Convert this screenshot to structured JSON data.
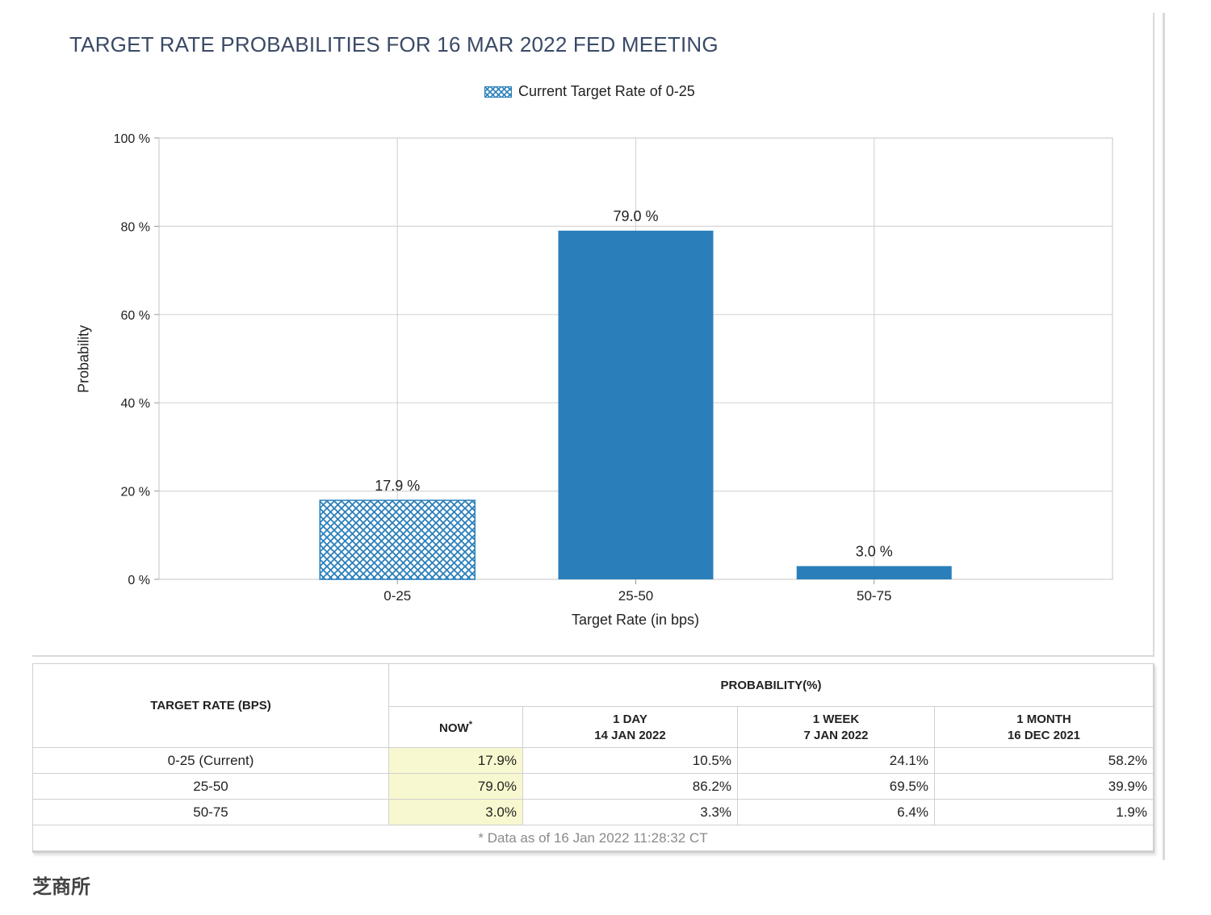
{
  "chart_data": {
    "type": "bar",
    "title": "TARGET RATE PROBABILITIES FOR 16 MAR 2022 FED MEETING",
    "legend": {
      "label": "Current Target Rate of 0-25",
      "placement": "top-center"
    },
    "categories": [
      "0-25",
      "25-50",
      "50-75"
    ],
    "values": [
      17.9,
      79.0,
      3.0
    ],
    "data_labels": [
      "17.9 %",
      "79.0 %",
      "3.0 %"
    ],
    "hatched_category": "0-25",
    "xlabel": "Target Rate (in bps)",
    "ylabel": "Probability",
    "ylim": [
      0,
      100
    ],
    "yticks": [
      0,
      20,
      40,
      60,
      80,
      100
    ],
    "ytick_labels": [
      "0 %",
      "20 %",
      "40 %",
      "60 %",
      "80 %",
      "100 %"
    ],
    "grid": true,
    "bar_color": "#2a7fba"
  },
  "table": {
    "header_rate": "TARGET RATE (BPS)",
    "header_prob": "PROBABILITY(%)",
    "columns": [
      {
        "line1": "NOW",
        "line2": ""
      },
      {
        "line1": "1 DAY",
        "line2": "14 JAN 2022"
      },
      {
        "line1": "1 WEEK",
        "line2": "7 JAN 2022"
      },
      {
        "line1": "1 MONTH",
        "line2": "16 DEC 2021"
      }
    ],
    "now_marker": "*",
    "rows": [
      {
        "rate": "0-25 (Current)",
        "values": [
          "17.9%",
          "10.5%",
          "24.1%",
          "58.2%"
        ]
      },
      {
        "rate": "25-50",
        "values": [
          "79.0%",
          "86.2%",
          "69.5%",
          "39.9%"
        ]
      },
      {
        "rate": "50-75",
        "values": [
          "3.0%",
          "3.3%",
          "6.4%",
          "1.9%"
        ]
      }
    ],
    "footnote": "* Data as of 16 Jan 2022 11:28:32 CT"
  },
  "source_label": "芝商所",
  "colors": {
    "now_highlight": "#f8f8d0",
    "title": "#3a4a66"
  }
}
